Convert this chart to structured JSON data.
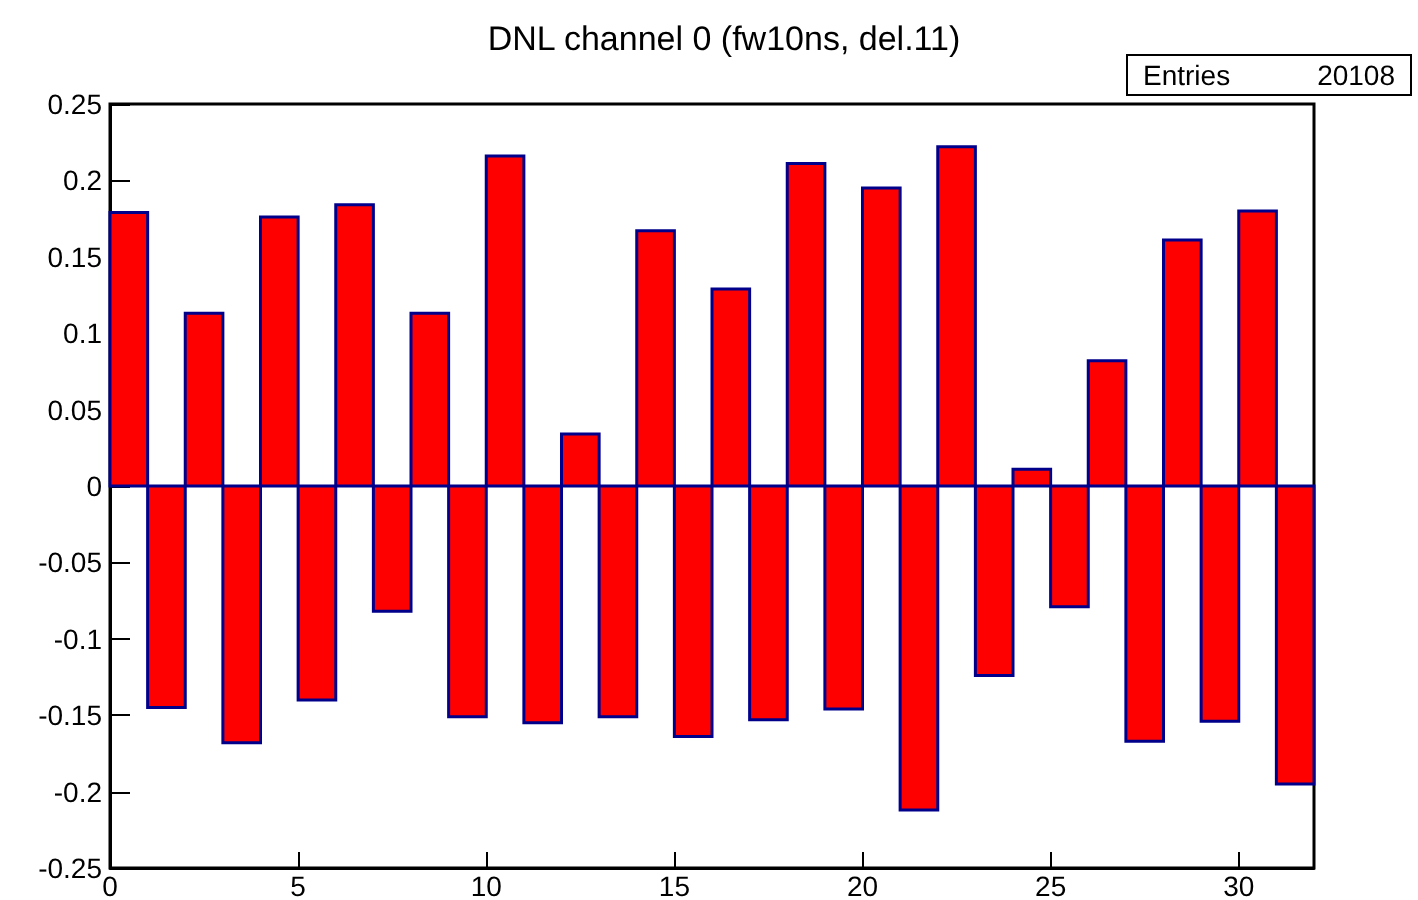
{
  "chart_data": {
    "type": "histogram",
    "title": "DNL channel 0 (fw10ns, del.11)",
    "bins": [
      0,
      1,
      2,
      3,
      4,
      5,
      6,
      7,
      8,
      9,
      10,
      11,
      12,
      13,
      14,
      15,
      16,
      17,
      18,
      19,
      20,
      21,
      22,
      23,
      24,
      25,
      26,
      27,
      28,
      29,
      30,
      31,
      32
    ],
    "values": [
      0.179,
      -0.145,
      0.113,
      -0.168,
      0.176,
      -0.14,
      0.184,
      -0.082,
      0.113,
      -0.151,
      0.216,
      -0.155,
      0.034,
      -0.151,
      0.167,
      -0.164,
      0.129,
      -0.153,
      0.211,
      -0.146,
      0.195,
      -0.212,
      0.222,
      -0.124,
      0.011,
      -0.079,
      0.082,
      -0.167,
      0.161,
      -0.154,
      0.18,
      -0.195
    ],
    "color": "#ff0000",
    "xlim": [
      0,
      32
    ],
    "xticks": [
      0,
      5,
      10,
      15,
      20,
      25,
      30
    ],
    "ylim": [
      -0.25,
      0.25
    ],
    "yticks": [
      -0.25,
      -0.2,
      -0.15,
      -0.1,
      -0.05,
      0,
      0.05,
      0.1,
      0.15,
      0.2,
      0.25
    ],
    "grid": false,
    "annotations": [
      "Entries",
      "20108"
    ]
  }
}
